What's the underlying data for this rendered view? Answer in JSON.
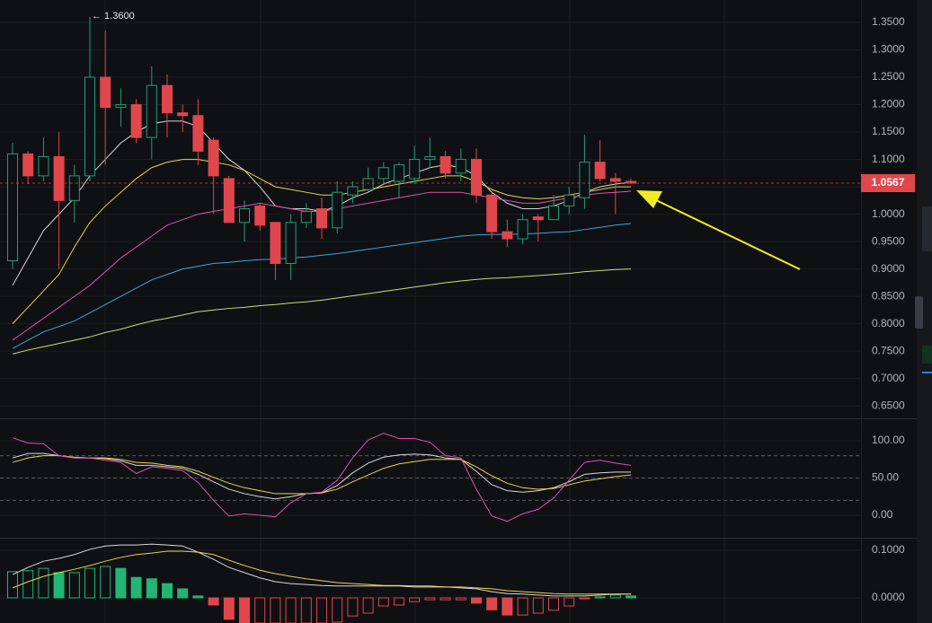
{
  "chart_data": [
    {
      "type": "candlestick",
      "open": [
        0.915,
        1.11,
        1.07,
        1.105,
        1.025,
        1.07,
        1.25,
        1.195,
        1.2,
        1.14,
        1.235,
        1.185,
        1.18,
        1.135,
        1.065,
        0.985,
        1.015,
        0.985,
        0.91,
        0.985,
        1.01,
        0.975,
        1.035,
        1.045,
        1.065,
        1.06,
        1.065,
        1.1,
        1.105,
        1.075,
        1.1,
        1.035,
        0.968,
        0.955,
        0.995,
        0.99,
        1.015,
        1.03,
        1.095,
        1.065,
        1.06
      ],
      "high": [
        1.13,
        1.115,
        1.14,
        1.15,
        1.09,
        1.36,
        1.335,
        1.23,
        1.21,
        1.27,
        1.255,
        1.2,
        1.21,
        1.14,
        1.07,
        1.025,
        1.02,
        0.985,
        1.0,
        1.02,
        1.03,
        1.06,
        1.06,
        1.085,
        1.095,
        1.095,
        1.125,
        1.14,
        1.115,
        1.12,
        1.12,
        1.04,
        0.99,
        1.0,
        1.0,
        1.035,
        1.05,
        1.145,
        1.135,
        1.075,
        1.065
      ],
      "low": [
        0.9,
        1.055,
        1.06,
        0.9,
        0.985,
        1.06,
        1.09,
        1.16,
        1.13,
        1.1,
        1.14,
        1.15,
        1.09,
        1.0,
        0.985,
        0.95,
        0.97,
        0.88,
        0.88,
        0.975,
        0.955,
        0.965,
        1.02,
        1.04,
        1.055,
        1.03,
        1.055,
        1.085,
        1.065,
        1.06,
        1.02,
        0.955,
        0.94,
        0.945,
        0.95,
        0.99,
        1.0,
        1.01,
        1.06,
        1.0,
        1.055
      ],
      "close": [
        1.11,
        1.07,
        1.105,
        1.025,
        1.07,
        1.25,
        1.195,
        1.2,
        1.14,
        1.235,
        1.185,
        1.18,
        1.115,
        1.07,
        0.985,
        1.01,
        0.98,
        0.91,
        0.985,
        1.005,
        0.975,
        1.04,
        1.05,
        1.065,
        1.085,
        1.09,
        1.1,
        1.105,
        1.075,
        1.1,
        1.035,
        0.968,
        0.955,
        0.99,
        0.99,
        1.015,
        1.035,
        1.095,
        1.065,
        1.06,
        1.0567
      ],
      "up_color": "#1f9f74",
      "down_color": "#e0474c",
      "series": [
        {
          "color": "#d9d9d9",
          "values": [
            0.87,
            0.92,
            0.97,
            1.0,
            1.03,
            1.07,
            1.1,
            1.13,
            1.15,
            1.165,
            1.17,
            1.17,
            1.16,
            1.13,
            1.1,
            1.08,
            1.05,
            1.015,
            1.01,
            1.01,
            1.005,
            1.015,
            1.03,
            1.04,
            1.055,
            1.065,
            1.075,
            1.085,
            1.09,
            1.085,
            1.07,
            1.04,
            1.02,
            1.01,
            1.01,
            1.015,
            1.025,
            1.04,
            1.05,
            1.055,
            1.058
          ]
        },
        {
          "color": "#e8d44d",
          "values": [
            0.8,
            0.83,
            0.86,
            0.89,
            0.94,
            0.985,
            1.015,
            1.04,
            1.065,
            1.085,
            1.095,
            1.1,
            1.1,
            1.095,
            1.09,
            1.08,
            1.065,
            1.05,
            1.045,
            1.04,
            1.035,
            1.035,
            1.04,
            1.045,
            1.05,
            1.055,
            1.06,
            1.065,
            1.07,
            1.07,
            1.06,
            1.045,
            1.035,
            1.03,
            1.028,
            1.03,
            1.035,
            1.04,
            1.045,
            1.05,
            1.05
          ]
        },
        {
          "color": "#e04fb0",
          "values": [
            0.77,
            0.79,
            0.81,
            0.83,
            0.85,
            0.87,
            0.895,
            0.92,
            0.94,
            0.96,
            0.98,
            0.99,
            1.0,
            1.005,
            1.01,
            1.015,
            1.02,
            1.015,
            1.01,
            1.005,
            1.005,
            1.01,
            1.015,
            1.02,
            1.025,
            1.03,
            1.035,
            1.04,
            1.04,
            1.04,
            1.035,
            1.03,
            1.025,
            1.02,
            1.02,
            1.025,
            1.03,
            1.035,
            1.038,
            1.04,
            1.042
          ]
        },
        {
          "color": "#3ba7e0",
          "values": [
            0.755,
            0.77,
            0.785,
            0.795,
            0.805,
            0.82,
            0.835,
            0.85,
            0.865,
            0.88,
            0.89,
            0.9,
            0.905,
            0.91,
            0.912,
            0.915,
            0.917,
            0.918,
            0.92,
            0.922,
            0.925,
            0.928,
            0.932,
            0.936,
            0.94,
            0.944,
            0.948,
            0.952,
            0.956,
            0.96,
            0.962,
            0.963,
            0.963,
            0.964,
            0.965,
            0.967,
            0.968,
            0.972,
            0.976,
            0.98,
            0.983
          ]
        },
        {
          "color": "#c8e07a",
          "values": [
            0.745,
            0.752,
            0.758,
            0.764,
            0.77,
            0.776,
            0.784,
            0.79,
            0.798,
            0.805,
            0.81,
            0.816,
            0.822,
            0.825,
            0.828,
            0.83,
            0.833,
            0.835,
            0.838,
            0.84,
            0.843,
            0.847,
            0.851,
            0.855,
            0.859,
            0.863,
            0.867,
            0.871,
            0.875,
            0.878,
            0.881,
            0.883,
            0.884,
            0.886,
            0.888,
            0.89,
            0.892,
            0.895,
            0.897,
            0.899,
            0.9
          ]
        }
      ],
      "ylim": [
        0.629,
        1.391
      ],
      "yticks": [
        {
          "value": 0.65,
          "label": "0.6500"
        },
        {
          "value": 0.7,
          "label": "0.7000"
        },
        {
          "value": 0.75,
          "label": "0.7500"
        },
        {
          "value": 0.8,
          "label": "0.8000"
        },
        {
          "value": 0.85,
          "label": "0.8500"
        },
        {
          "value": 0.9,
          "label": "0.9000"
        },
        {
          "value": 0.95,
          "label": "0.9500"
        },
        {
          "value": 1.0,
          "label": "1.0000"
        },
        {
          "value": 1.05,
          "label": "1.0500"
        },
        {
          "value": 1.1,
          "label": "1.1000"
        },
        {
          "value": 1.15,
          "label": "1.1500"
        },
        {
          "value": 1.2,
          "label": "1.2000"
        },
        {
          "value": 1.25,
          "label": "1.2500"
        },
        {
          "value": 1.3,
          "label": "1.3000"
        },
        {
          "value": 1.35,
          "label": "1.3500"
        }
      ],
      "last_price": 1.0567,
      "high_marker": {
        "value": 1.36,
        "label": "← 1.3600"
      },
      "grid": true
    },
    {
      "type": "line",
      "series": [
        {
          "color": "#d9d9d9",
          "values": [
            77,
            83,
            83,
            80,
            77,
            77,
            76,
            73,
            67,
            67,
            65,
            63,
            55,
            45,
            35,
            29,
            25,
            22,
            25,
            29,
            30,
            40,
            57,
            70,
            78,
            81,
            82,
            81,
            77,
            75,
            59,
            41,
            33,
            31,
            33,
            37,
            45,
            55,
            57,
            58,
            58
          ]
        },
        {
          "color": "#e8d44d",
          "values": [
            71,
            77,
            80,
            80,
            78,
            77,
            77,
            75,
            71,
            70,
            67,
            65,
            59,
            51,
            43,
            37,
            33,
            29,
            29,
            29,
            30,
            35,
            45,
            54,
            63,
            69,
            72,
            75,
            75,
            75,
            65,
            53,
            43,
            37,
            35,
            36,
            41,
            46,
            49,
            52,
            54
          ]
        },
        {
          "color": "#e04fb0",
          "values": [
            104,
            97,
            96,
            80,
            77,
            77,
            74,
            71,
            56,
            65,
            63,
            60,
            44,
            20,
            -1,
            2,
            0,
            -2,
            17,
            29,
            31,
            47,
            77,
            101,
            110,
            103,
            103,
            98,
            80,
            77,
            35,
            -1,
            -8,
            2,
            8,
            23,
            47,
            71,
            74,
            70,
            67
          ]
        }
      ],
      "ylim": [
        -28.9,
        127.7
      ],
      "yticks": [
        {
          "value": 0,
          "label": "0.00"
        },
        {
          "value": 50,
          "label": "50.00"
        },
        {
          "value": 100,
          "label": "100.00"
        }
      ],
      "levels": [
        80,
        50,
        20
      ]
    },
    {
      "type": "combo",
      "histogram": [
        0.055,
        0.057,
        0.062,
        0.053,
        0.053,
        0.062,
        0.066,
        0.062,
        0.043,
        0.04,
        0.03,
        0.019,
        0.004,
        -0.015,
        -0.045,
        -0.053,
        -0.053,
        -0.053,
        -0.053,
        -0.053,
        -0.053,
        -0.051,
        -0.038,
        -0.032,
        -0.017,
        -0.015,
        -0.008,
        -0.004,
        -0.004,
        -0.004,
        -0.011,
        -0.025,
        -0.036,
        -0.036,
        -0.032,
        -0.026,
        -0.017,
        -0.002,
        0.002,
        0.006,
        0.004
      ],
      "up_color": "#22b573",
      "down_color": "#e0474c",
      "series": [
        {
          "color": "#d9d9d9",
          "values": [
            0.049,
            0.064,
            0.077,
            0.083,
            0.091,
            0.102,
            0.109,
            0.111,
            0.111,
            0.113,
            0.111,
            0.109,
            0.096,
            0.081,
            0.064,
            0.053,
            0.042,
            0.034,
            0.03,
            0.028,
            0.026,
            0.025,
            0.025,
            0.025,
            0.025,
            0.025,
            0.023,
            0.023,
            0.023,
            0.021,
            0.019,
            0.013,
            0.009,
            0.008,
            0.006,
            0.004,
            0.004,
            0.004,
            0.006,
            0.008,
            0.008
          ]
        },
        {
          "color": "#e8d44d",
          "values": [
            0.021,
            0.034,
            0.045,
            0.053,
            0.06,
            0.068,
            0.077,
            0.085,
            0.091,
            0.094,
            0.098,
            0.098,
            0.096,
            0.091,
            0.079,
            0.068,
            0.058,
            0.051,
            0.045,
            0.04,
            0.036,
            0.032,
            0.03,
            0.028,
            0.026,
            0.026,
            0.025,
            0.025,
            0.023,
            0.023,
            0.021,
            0.019,
            0.015,
            0.013,
            0.011,
            0.009,
            0.008,
            0.008,
            0.008,
            0.008,
            0.008
          ]
        }
      ],
      "ylim": [
        -0.0528,
        0.1245
      ],
      "yticks": [
        {
          "value": 0,
          "label": "0.0000"
        },
        {
          "value": 0.1,
          "label": "0.1000"
        }
      ]
    }
  ]
}
